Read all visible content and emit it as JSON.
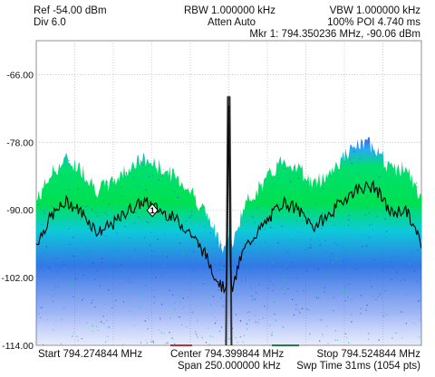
{
  "header": {
    "ref": "Ref -54.00 dBm",
    "div": "Div 6.0",
    "rbw": "RBW 1.000000 kHz",
    "atten": "Atten Auto",
    "vbw": "VBW 1.000000 kHz",
    "poi": "100% POI 4.740 ms",
    "marker": "Mkr 1: 794.350236 MHz, -90.06 dBm"
  },
  "footer": {
    "start": "Start 794.274844 MHz",
    "center": "Center 794.399844 MHz",
    "stop": "Stop 794.524844 MHz",
    "span": "Span 250.000000 kHz",
    "sweep": "Swp Time 31ms (1054 pts)"
  },
  "colors": {
    "trace": "#000000",
    "density_high": "#00e050",
    "density_mid": "#00b8e8",
    "density_low": "#1040d8",
    "grid": "#b0b0b0"
  },
  "chart_data": {
    "type": "line",
    "title": "",
    "xlabel": "",
    "ylabel": "",
    "xlim": [
      794.274844,
      794.524844
    ],
    "ylim": [
      -114,
      -60
    ],
    "yticks": [
      "-66.00",
      "-78.00",
      "-90.00",
      "-102.00",
      "-114.00"
    ],
    "grid": true,
    "marker": {
      "label": "1",
      "x": 794.350236,
      "y": -90.06
    },
    "series": [
      {
        "x": [
          794.2748,
          794.2848,
          794.2948,
          794.3048,
          794.3148,
          794.3248,
          794.3348,
          794.3448,
          794.3548,
          794.3648,
          794.3748,
          794.3848,
          794.3898,
          794.3938,
          794.3968,
          794.3988,
          794.3998,
          794.4008,
          794.4028,
          794.4058,
          794.4098,
          794.4148,
          794.4248,
          794.4348,
          794.4448,
          794.4548,
          794.4648,
          794.4748,
          794.4848,
          794.4948,
          794.5048,
          794.5148,
          794.5248
        ],
        "y": [
          -96,
          -91,
          -88.5,
          -90.5,
          -94,
          -92.5,
          -90,
          -88.5,
          -90,
          -91.5,
          -94,
          -98,
          -101,
          -103,
          -104,
          -102,
          -70,
          -103,
          -104,
          -100,
          -97,
          -95,
          -92,
          -88.5,
          -90,
          -93,
          -91,
          -88,
          -86,
          -86,
          -90.5,
          -90,
          -96
        ]
      }
    ]
  }
}
